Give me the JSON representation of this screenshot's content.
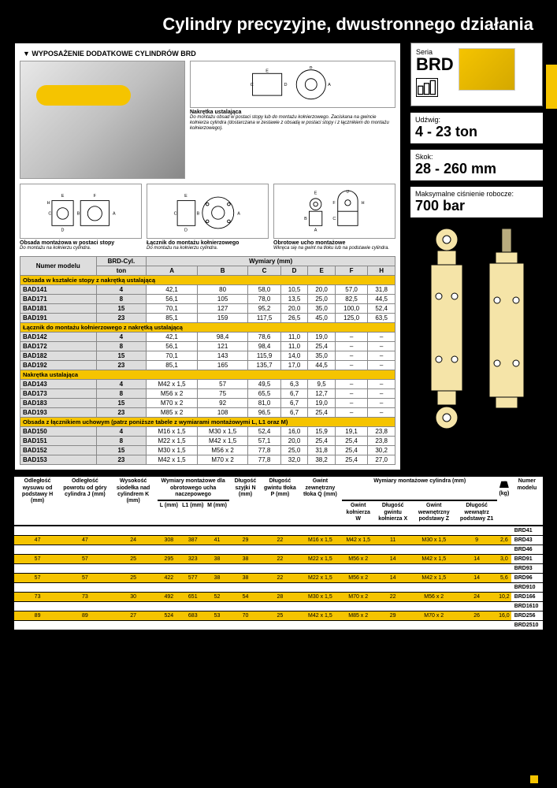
{
  "page_title": "Cylindry precyzyjne, dwustronnego działania",
  "accessories": {
    "header": "▼  WYPOSAŻENIE DODATKOWE CYLINDRÓW BRD",
    "nakretka_title": "Nakrętka ustalająca",
    "nakretka_text": "Do montażu obsad w postaci stopy lub do montażu kołnierzowego. Zaciskana na gwincie kołnierza cylindra (dostarczana w zestawie z obsadą w postaci stopy i z łącznikiem do montażu kołnierzowego).",
    "items": [
      {
        "title": "Obsada montażowa w postaci stopy",
        "text": "Do montażu na kołnierzu cylindra."
      },
      {
        "title": "Łącznik do montażu kołnierzowego",
        "text": "Do montażu na kołnierzu cylindra."
      },
      {
        "title": "Obrotowe ucho montażowe",
        "text": "Wkręca się na gwint na tłoku lub na podstawie cylindra."
      }
    ]
  },
  "acc_table": {
    "headers": {
      "model": "Numer modelu",
      "cyl": "BRD-Cyl.",
      "ton": "ton",
      "dims": "Wymiary (mm)",
      "cols": [
        "A",
        "B",
        "C",
        "D",
        "E",
        "F",
        "H"
      ]
    },
    "sections": [
      {
        "title": "Obsada w kształcie stopy z nakrętką ustalającą",
        "rows": [
          {
            "m": "BAD141",
            "t": "4",
            "v": [
              "42,1",
              "80",
              "58,0",
              "10,5",
              "20,0",
              "57,0",
              "31,8"
            ]
          },
          {
            "m": "BAD171",
            "t": "8",
            "v": [
              "56,1",
              "105",
              "78,0",
              "13,5",
              "25,0",
              "82,5",
              "44,5"
            ]
          },
          {
            "m": "BAD181",
            "t": "15",
            "v": [
              "70,1",
              "127",
              "95,2",
              "20,0",
              "35,0",
              "100,0",
              "52,4"
            ]
          },
          {
            "m": "BAD191",
            "t": "23",
            "v": [
              "85,1",
              "159",
              "117,5",
              "26,5",
              "45,0",
              "125,0",
              "63,5"
            ]
          }
        ]
      },
      {
        "title": "Łącznik do montażu kołnierzowego z nakrętką ustalającą",
        "rows": [
          {
            "m": "BAD142",
            "t": "4",
            "v": [
              "42,1",
              "98,4",
              "78,6",
              "11,0",
              "19,0",
              "–",
              "–"
            ]
          },
          {
            "m": "BAD172",
            "t": "8",
            "v": [
              "56,1",
              "121",
              "98,4",
              "11,0",
              "25,4",
              "–",
              "–"
            ]
          },
          {
            "m": "BAD182",
            "t": "15",
            "v": [
              "70,1",
              "143",
              "115,9",
              "14,0",
              "35,0",
              "–",
              "–"
            ]
          },
          {
            "m": "BAD192",
            "t": "23",
            "v": [
              "85,1",
              "165",
              "135,7",
              "17,0",
              "44,5",
              "–",
              "–"
            ]
          }
        ]
      },
      {
        "title": "Nakrętka ustalająca",
        "rows": [
          {
            "m": "BAD143",
            "t": "4",
            "v": [
              "M42 x 1,5",
              "57",
              "49,5",
              "6,3",
              "9,5",
              "–",
              "–"
            ]
          },
          {
            "m": "BAD173",
            "t": "8",
            "v": [
              "M56 x 2",
              "75",
              "65,5",
              "6,7",
              "12,7",
              "–",
              "–"
            ]
          },
          {
            "m": "BAD183",
            "t": "15",
            "v": [
              "M70 x 2",
              "92",
              "81,0",
              "6,7",
              "19,0",
              "–",
              "–"
            ]
          },
          {
            "m": "BAD193",
            "t": "23",
            "v": [
              "M85 x 2",
              "108",
              "96,5",
              "6,7",
              "25,4",
              "–",
              "–"
            ]
          }
        ]
      },
      {
        "title": "Obsada z łącznikiem uchowym (patrz poniższe tabele z wymiarami montażowymi L, L1 oraz M)",
        "rows": [
          {
            "m": "BAD150",
            "t": "4",
            "v": [
              "M16 x 1,5",
              "M30 x 1,5",
              "52,4",
              "16,0",
              "15,9",
              "19,1",
              "23,8"
            ]
          },
          {
            "m": "BAD151",
            "t": "8",
            "v": [
              "M22 x 1,5",
              "M42 x 1,5",
              "57,1",
              "20,0",
              "25,4",
              "25,4",
              "23,8"
            ]
          },
          {
            "m": "BAD152",
            "t": "15",
            "v": [
              "M30 x 1,5",
              "M56 x 2",
              "77,8",
              "25,0",
              "31,8",
              "25,4",
              "30,2"
            ]
          },
          {
            "m": "BAD153",
            "t": "23",
            "v": [
              "M42 x 1,5",
              "M70 x 2",
              "77,8",
              "32,0",
              "38,2",
              "25,4",
              "27,0"
            ]
          }
        ]
      }
    ]
  },
  "series": {
    "label": "Seria",
    "name": "BRD"
  },
  "specs": [
    {
      "label": "Udźwig:",
      "value": "4 - 23 ton"
    },
    {
      "label": "Skok:",
      "value": "28 - 260 mm"
    },
    {
      "label": "Maksymalne ciśnienie robocze:",
      "value": "700 bar"
    }
  ],
  "bottom_table": {
    "group_header": "Wymiary montażowe cylindra (mm)",
    "mount_group": "Wymiary montażowe dla obrotowego ucha naczepowego",
    "headers": [
      "Odległość wysuwu od podstawy\nH\n(mm)",
      "Odległość powrotu od góry cylindra\nJ\n(mm)",
      "Wysokość siodełka nad cylindrem\nK\n(mm)",
      "L\n(mm)",
      "L1\n(mm)",
      "M\n(mm)",
      "Długość szyjki\n\nN\n(mm)",
      "Długość gwintu tłoka\nP\n(mm)",
      "Gwint zewnętrzny tłoka\nQ\n(mm)",
      "Gwint kołnierza\n\nW",
      "Długość gwintu kołnierza\nX",
      "Gwint wewnętrzny podstawy\nZ",
      "Długość wewnątrz podstawy\nZ1",
      "(kg)",
      "Numer modelu"
    ],
    "rows": [
      {
        "data": [
          "",
          "",
          "",
          "",
          "",
          "",
          "",
          "",
          "",
          "",
          "",
          "",
          "",
          ""
        ],
        "model": "BRD41",
        "yellow": false
      },
      {
        "data": [
          "47",
          "47",
          "24",
          "308",
          "387",
          "41",
          "29",
          "22",
          "M16 x 1,5",
          "M42 x 1,5",
          "11",
          "M30 x 1,5",
          "9",
          "2,6"
        ],
        "model": "BRD43",
        "yellow": true
      },
      {
        "data": [
          "",
          "",
          "",
          "",
          "",
          "",
          "",
          "",
          "",
          "",
          "",
          "",
          "",
          ""
        ],
        "model": "BRD46",
        "yellow": false
      },
      {
        "data": [
          "57",
          "57",
          "25",
          "295",
          "323",
          "38",
          "38",
          "22",
          "M22 x 1,5",
          "M56 x 2",
          "14",
          "M42 x 1,5",
          "14",
          "3,0"
        ],
        "model": "BRD91",
        "yellow": true
      },
      {
        "data": [
          "",
          "",
          "",
          "",
          "",
          "",
          "",
          "",
          "",
          "",
          "",
          "",
          "",
          ""
        ],
        "model": "BRD93",
        "yellow": false
      },
      {
        "data": [
          "57",
          "57",
          "25",
          "422",
          "577",
          "38",
          "38",
          "22",
          "M22 x 1,5",
          "M56 x 2",
          "14",
          "M42 x 1,5",
          "14",
          "5,6"
        ],
        "model": "BRD96",
        "yellow": true
      },
      {
        "data": [
          "",
          "",
          "",
          "",
          "",
          "",
          "",
          "",
          "",
          "",
          "",
          "",
          "",
          ""
        ],
        "model": "BRD910",
        "yellow": false
      },
      {
        "data": [
          "73",
          "73",
          "30",
          "492",
          "651",
          "52",
          "54",
          "28",
          "M30 x 1,5",
          "M70 x 2",
          "22",
          "M56 x 2",
          "24",
          "10,2"
        ],
        "model": "BRD166",
        "yellow": true
      },
      {
        "data": [
          "",
          "",
          "",
          "",
          "",
          "",
          "",
          "",
          "",
          "",
          "",
          "",
          "",
          ""
        ],
        "model": "BRD1610",
        "yellow": false
      },
      {
        "data": [
          "89",
          "89",
          "27",
          "524",
          "683",
          "53",
          "70",
          "25",
          "M42 x 1,5",
          "M85 x 2",
          "29",
          "M70 x 2",
          "26",
          "16,0"
        ],
        "model": "BRD256",
        "yellow": true
      },
      {
        "data": [
          "",
          "",
          "",
          "",
          "",
          "",
          "",
          "",
          "",
          "",
          "",
          "",
          "",
          ""
        ],
        "model": "BRD2510",
        "yellow": false
      }
    ]
  },
  "colors": {
    "yellow": "#f5c400",
    "black": "#000",
    "grey": "#ddd"
  }
}
